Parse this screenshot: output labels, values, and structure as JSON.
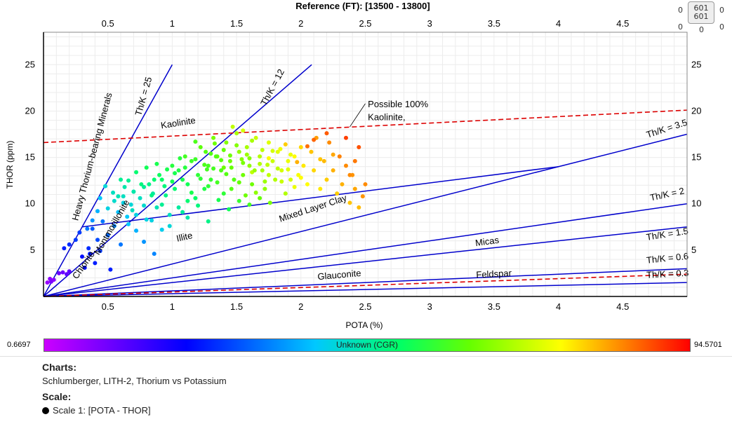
{
  "header": {
    "reference_label": "Reference (FT): [13500 - 13800]"
  },
  "counter": {
    "left_top": "0",
    "left_bottom": "0",
    "box_top": "601",
    "box_bottom": "601",
    "right_top": "0",
    "right_bottom": "0",
    "box_under_left": "0"
  },
  "chart_data": {
    "type": "scatter",
    "title": "",
    "xlabel": "POTA (%)",
    "ylabel": "THOR (ppm)",
    "xlim": [
      0,
      5
    ],
    "ylim": [
      0,
      28.5
    ],
    "x_ticks": [
      "0.5",
      "1",
      "1.5",
      "2",
      "2.5",
      "3",
      "3.5",
      "4",
      "4.5"
    ],
    "y_ticks": [
      "5",
      "10",
      "15",
      "20",
      "25"
    ],
    "grid": true,
    "color_scale": {
      "name": "Unknown (CGR)",
      "min": "0.6697",
      "max": "94.5701",
      "colors": [
        "#cc00ff",
        "#0000ff",
        "#00c8ff",
        "#00ff66",
        "#66ff00",
        "#ffff00",
        "#ff8000",
        "#ff0000"
      ]
    },
    "ratio_lines": [
      {
        "label": "Th/K = 25",
        "ratio": 25,
        "color": "#0000cc"
      },
      {
        "label": "Th/K = 12",
        "ratio": 12,
        "color": "#0000cc"
      },
      {
        "label": "Th/K = 3.5",
        "ratio": 3.5,
        "color": "#0000cc"
      },
      {
        "label": "Th/K = 2",
        "ratio": 2,
        "color": "#0000cc"
      },
      {
        "label": "Th/K = 1.5",
        "ratio": 1.5,
        "color": "#0000cc"
      },
      {
        "label": "Th/K = 0.6",
        "ratio": 0.6,
        "color": "#0000cc"
      },
      {
        "label": "Th/K = 0.3",
        "ratio": 0.3,
        "color": "#0000cc"
      }
    ],
    "extra_lines": [
      {
        "from": [
          0.3,
          7.5
        ],
        "to": [
          4.0,
          14.0
        ],
        "color": "#0000cc"
      }
    ],
    "dashed_lines": [
      {
        "label": "Possible 100% Kaolinite,",
        "from": [
          0,
          16.6
        ],
        "to": [
          5,
          20.1
        ],
        "color": "#dd0000"
      },
      {
        "label": "",
        "from": [
          0,
          0
        ],
        "to": [
          5,
          2.4
        ],
        "color": "#dd0000"
      }
    ],
    "zone_labels": [
      {
        "text": "Heavy Thorium-bearing Minerals",
        "x": 0.4,
        "y": 15,
        "angle": -75
      },
      {
        "text": "Kaolinite",
        "x": 1.05,
        "y": 18.4,
        "angle": -9
      },
      {
        "text": "Montmorillonite",
        "x": 0.55,
        "y": 7.3,
        "angle": -60
      },
      {
        "text": "Chlorite",
        "x": 0.33,
        "y": 3.2,
        "angle": -55
      },
      {
        "text": "Mixed Layer Clay",
        "x": 2.1,
        "y": 9.2,
        "angle": -18
      },
      {
        "text": "Illite",
        "x": 1.1,
        "y": 6.1,
        "angle": -13
      },
      {
        "text": "Micas",
        "x": 3.45,
        "y": 5.6,
        "angle": -8
      },
      {
        "text": "Glauconite",
        "x": 2.3,
        "y": 2.0,
        "angle": -5
      },
      {
        "text": "Feldspar",
        "x": 3.5,
        "y": 2.1,
        "angle": -3
      }
    ],
    "series": [
      {
        "name": "",
        "points": [
          [
            0.03,
            1.5,
            4
          ],
          [
            0.05,
            1.9,
            5
          ],
          [
            0.06,
            1.6,
            6
          ],
          [
            0.08,
            1.8,
            5
          ],
          [
            0.12,
            2.5,
            7
          ],
          [
            0.15,
            2.6,
            7
          ],
          [
            0.18,
            2.4,
            8
          ],
          [
            0.2,
            2.7,
            8
          ],
          [
            0.16,
            5.2,
            16
          ],
          [
            0.2,
            5.6,
            17
          ],
          [
            0.25,
            6.1,
            18
          ],
          [
            0.28,
            6.9,
            18
          ],
          [
            0.3,
            4.3,
            15
          ],
          [
            0.32,
            3.1,
            15
          ],
          [
            0.35,
            5.2,
            17
          ],
          [
            0.36,
            4.6,
            16
          ],
          [
            0.38,
            7.3,
            20
          ],
          [
            0.4,
            3.6,
            16
          ],
          [
            0.42,
            6.1,
            19
          ],
          [
            0.44,
            4.9,
            18
          ],
          [
            0.46,
            8.1,
            22
          ],
          [
            0.5,
            6.6,
            21
          ],
          [
            0.52,
            2.9,
            16
          ],
          [
            0.55,
            7.6,
            23
          ],
          [
            0.58,
            9.1,
            27
          ],
          [
            0.6,
            5.6,
            22
          ],
          [
            0.62,
            10.1,
            30
          ],
          [
            0.65,
            8.6,
            28
          ],
          [
            0.68,
            9.9,
            31
          ],
          [
            0.7,
            11.3,
            35
          ],
          [
            0.72,
            7.1,
            26
          ],
          [
            0.75,
            10.6,
            33
          ],
          [
            0.78,
            5.9,
            24
          ],
          [
            0.8,
            8.3,
            30
          ],
          [
            0.82,
            12.1,
            38
          ],
          [
            0.85,
            11.1,
            36
          ],
          [
            0.86,
            4.6,
            23
          ],
          [
            0.88,
            9.6,
            34
          ],
          [
            0.9,
            13.1,
            42
          ],
          [
            0.92,
            12.6,
            41
          ],
          [
            0.95,
            10.9,
            38
          ],
          [
            0.98,
            7.6,
            31
          ],
          [
            1.0,
            14.1,
            46
          ],
          [
            1.02,
            11.6,
            40
          ],
          [
            1.05,
            13.6,
            45
          ],
          [
            1.08,
            9.1,
            36
          ],
          [
            1.1,
            15.1,
            50
          ],
          [
            1.12,
            12.1,
            43
          ],
          [
            1.15,
            14.6,
            49
          ],
          [
            1.18,
            10.6,
            41
          ],
          [
            1.2,
            13.1,
            47
          ],
          [
            1.22,
            16.1,
            53
          ],
          [
            1.25,
            11.6,
            45
          ],
          [
            1.28,
            14.1,
            50
          ],
          [
            1.3,
            12.6,
            48
          ],
          [
            1.32,
            17.1,
            56
          ],
          [
            1.35,
            15.1,
            53
          ],
          [
            1.38,
            13.6,
            51
          ],
          [
            1.4,
            11.1,
            47
          ],
          [
            1.42,
            16.6,
            57
          ],
          [
            1.45,
            14.6,
            55
          ],
          [
            1.48,
            12.6,
            52
          ],
          [
            1.5,
            17.6,
            60
          ],
          [
            1.52,
            15.6,
            58
          ],
          [
            1.55,
            13.1,
            55
          ],
          [
            1.58,
            16.1,
            60
          ],
          [
            1.6,
            14.1,
            58
          ],
          [
            1.62,
            12.1,
            55
          ],
          [
            1.65,
            17.1,
            63
          ],
          [
            1.68,
            15.1,
            61
          ],
          [
            1.7,
            13.6,
            60
          ],
          [
            1.72,
            11.6,
            58
          ],
          [
            1.75,
            16.6,
            65
          ],
          [
            1.78,
            14.6,
            63
          ],
          [
            1.8,
            12.6,
            61
          ],
          [
            1.82,
            15.6,
            65
          ],
          [
            1.85,
            13.6,
            64
          ],
          [
            1.88,
            11.1,
            61
          ],
          [
            1.9,
            14.6,
            66
          ],
          [
            1.92,
            12.6,
            64
          ],
          [
            1.95,
            15.1,
            68
          ],
          [
            1.98,
            13.1,
            67
          ],
          [
            2.0,
            16.1,
            72
          ],
          [
            2.02,
            14.1,
            70
          ],
          [
            2.05,
            12.1,
            68
          ],
          [
            2.08,
            15.6,
            74
          ],
          [
            2.1,
            13.6,
            72
          ],
          [
            2.12,
            17.1,
            78
          ],
          [
            2.15,
            11.6,
            70
          ],
          [
            2.18,
            14.6,
            75
          ],
          [
            2.2,
            12.6,
            73
          ],
          [
            2.22,
            16.6,
            80
          ],
          [
            2.25,
            13.6,
            76
          ],
          [
            2.28,
            11.1,
            73
          ],
          [
            2.3,
            15.1,
            81
          ],
          [
            2.32,
            12.1,
            76
          ],
          [
            2.35,
            14.1,
            80
          ],
          [
            2.38,
            10.1,
            74
          ],
          [
            2.4,
            13.1,
            79
          ],
          [
            2.42,
            11.6,
            77
          ],
          [
            2.45,
            9.6,
            75
          ],
          [
            2.5,
            12.1,
            80
          ],
          [
            2.45,
            16.1,
            86
          ],
          [
            2.35,
            17.1,
            88
          ],
          [
            2.2,
            17.6,
            85
          ],
          [
            2.1,
            16.9,
            84
          ],
          [
            2.05,
            16.2,
            83
          ],
          [
            1.97,
            14.5,
            76
          ],
          [
            1.88,
            16.4,
            73
          ],
          [
            1.75,
            14.9,
            68
          ],
          [
            1.62,
            13.4,
            62
          ],
          [
            1.55,
            17.9,
            64
          ],
          [
            1.47,
            18.3,
            62
          ],
          [
            1.4,
            13.9,
            55
          ],
          [
            1.33,
            16.5,
            55
          ],
          [
            1.27,
            13.7,
            50
          ],
          [
            1.18,
            16.7,
            51
          ],
          [
            1.12,
            10.3,
            40
          ],
          [
            1.06,
            14.9,
            46
          ],
          [
            1.0,
            12.4,
            43
          ],
          [
            0.96,
            13.7,
            44
          ],
          [
            0.92,
            9.9,
            37
          ],
          [
            0.88,
            14.3,
            44
          ],
          [
            0.84,
            10.9,
            38
          ],
          [
            0.8,
            13.9,
            43
          ],
          [
            0.76,
            12.1,
            39
          ],
          [
            0.72,
            13.4,
            40
          ],
          [
            0.69,
            9.3,
            33
          ],
          [
            0.66,
            12.5,
            37
          ],
          [
            0.63,
            11.8,
            35
          ],
          [
            0.6,
            12.6,
            37
          ],
          [
            0.58,
            10.8,
            34
          ],
          [
            0.54,
            11.2,
            33
          ],
          [
            0.5,
            9.5,
            30
          ],
          [
            0.48,
            11.9,
            31
          ],
          [
            0.44,
            10.6,
            28
          ],
          [
            0.42,
            9.2,
            26
          ],
          [
            0.38,
            8.2,
            24
          ],
          [
            0.34,
            7.3,
            22
          ],
          [
            1.6,
            14.9,
            57
          ],
          [
            1.55,
            14.4,
            56
          ],
          [
            1.45,
            15.2,
            55
          ],
          [
            1.38,
            14.7,
            53
          ],
          [
            1.3,
            15.4,
            52
          ],
          [
            1.25,
            14.2,
            51
          ],
          [
            1.52,
            12.3,
            54
          ],
          [
            1.65,
            11.2,
            58
          ],
          [
            1.72,
            12.4,
            59
          ],
          [
            1.82,
            13.8,
            62
          ],
          [
            1.92,
            15.3,
            66
          ],
          [
            1.7,
            15.8,
            62
          ],
          [
            1.58,
            15.3,
            59
          ],
          [
            1.42,
            13.2,
            52
          ],
          [
            1.35,
            12.3,
            50
          ],
          [
            1.22,
            12.7,
            47
          ],
          [
            1.15,
            11.2,
            44
          ],
          [
            1.08,
            12.6,
            44
          ],
          [
            1.68,
            14.3,
            61
          ],
          [
            1.75,
            13.1,
            62
          ],
          [
            1.85,
            12.4,
            63
          ],
          [
            1.9,
            13.7,
            65
          ],
          [
            1.62,
            16.8,
            60
          ],
          [
            1.5,
            16.3,
            57
          ],
          [
            1.4,
            15.8,
            54
          ],
          [
            1.32,
            13.8,
            50
          ],
          [
            1.28,
            11.9,
            47
          ],
          [
            1.46,
            11.6,
            52
          ],
          [
            1.57,
            10.9,
            55
          ],
          [
            1.78,
            15.7,
            64
          ],
          [
            1.95,
            11.8,
            66
          ],
          [
            2.0,
            12.8,
            68
          ],
          [
            2.15,
            14.8,
            74
          ],
          [
            2.25,
            15.3,
            77
          ],
          [
            2.38,
            13.1,
            80
          ],
          [
            2.42,
            14.6,
            82
          ],
          [
            2.48,
            10.8,
            79
          ],
          [
            0.66,
            7.8,
            28
          ],
          [
            0.72,
            8.8,
            30
          ],
          [
            0.78,
            9.8,
            32
          ],
          [
            0.84,
            8.2,
            30
          ],
          [
            0.92,
            7.2,
            29
          ],
          [
            0.98,
            8.8,
            33
          ],
          [
            1.05,
            9.6,
            36
          ],
          [
            1.12,
            8.5,
            35
          ],
          [
            1.2,
            9.8,
            39
          ],
          [
            1.28,
            8.1,
            38
          ],
          [
            1.36,
            10.4,
            44
          ],
          [
            1.44,
            9.4,
            43
          ],
          [
            1.52,
            10.3,
            48
          ],
          [
            1.6,
            9.9,
            50
          ],
          [
            1.68,
            10.6,
            54
          ],
          [
            1.76,
            10.1,
            56
          ],
          [
            0.55,
            10.3,
            32
          ],
          [
            0.62,
            10.8,
            33
          ],
          [
            0.7,
            11.3,
            35
          ],
          [
            0.78,
            11.8,
            37
          ],
          [
            0.86,
            12.6,
            40
          ],
          [
            0.94,
            11.9,
            39
          ],
          [
            1.02,
            13.3,
            44
          ],
          [
            1.1,
            13.9,
            46
          ],
          [
            1.18,
            14.8,
            49
          ],
          [
            1.26,
            15.6,
            52
          ],
          [
            1.34,
            15.1,
            52
          ],
          [
            1.46,
            13.9,
            54
          ],
          [
            1.54,
            14.8,
            57
          ],
          [
            1.64,
            13.6,
            59
          ],
          [
            1.74,
            14.2,
            62
          ],
          [
            1.84,
            15.9,
            66
          ]
        ]
      }
    ]
  },
  "footer": {
    "charts_title": "Charts:",
    "charts_value": "Schlumberger, LITH-2, Thorium vs Potassium",
    "scale_title": "Scale:",
    "scale_value": "Scale 1:  [POTA - THOR]"
  }
}
